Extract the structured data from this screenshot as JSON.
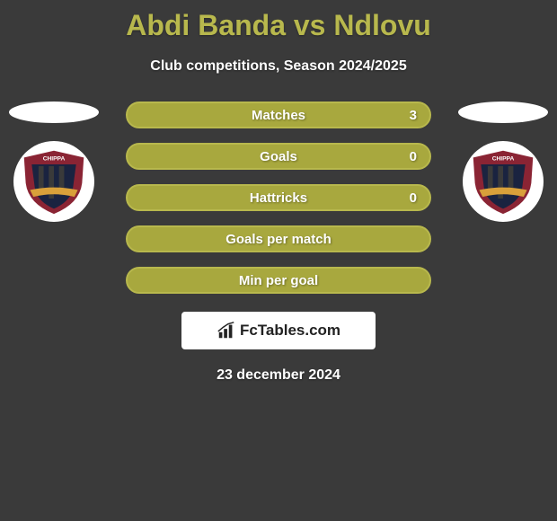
{
  "title": "Abdi Banda vs Ndlovu",
  "subtitle": "Club competitions, Season 2024/2025",
  "date": "23 december 2024",
  "colors": {
    "bar_fill": "#a8a83e",
    "bar_border": "#b8b84d",
    "title_color": "#b8b84d",
    "background": "#3a3a3a"
  },
  "bars": [
    {
      "label": "Matches",
      "value": "3",
      "show_value": true
    },
    {
      "label": "Goals",
      "value": "0",
      "show_value": true
    },
    {
      "label": "Hattricks",
      "value": "0",
      "show_value": true
    },
    {
      "label": "Goals per match",
      "value": "",
      "show_value": false
    },
    {
      "label": "Min per goal",
      "value": "",
      "show_value": false
    }
  ],
  "logo": {
    "text": "FcTables.com"
  },
  "club": {
    "top_text": "CHIPPA",
    "banner_color": "#8a2434",
    "stripes": [
      "#1a2340",
      "#3a3a3a",
      "#1a2340",
      "#3a3a3a",
      "#1a2340"
    ]
  }
}
